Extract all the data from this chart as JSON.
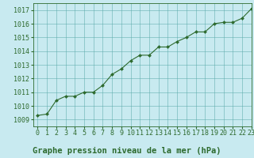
{
  "x": [
    0,
    1,
    2,
    3,
    4,
    5,
    6,
    7,
    8,
    9,
    10,
    11,
    12,
    13,
    14,
    15,
    16,
    17,
    18,
    19,
    20,
    21,
    22,
    23
  ],
  "y": [
    1009.3,
    1009.4,
    1010.4,
    1010.7,
    1010.7,
    1011.0,
    1011.0,
    1011.5,
    1012.3,
    1012.7,
    1013.3,
    1013.7,
    1013.7,
    1014.3,
    1014.3,
    1014.7,
    1015.0,
    1015.4,
    1015.4,
    1016.0,
    1016.1,
    1016.1,
    1016.4,
    1017.1
  ],
  "line_color": "#2d6a2d",
  "marker_color": "#2d6a2d",
  "bg_color": "#c8eaf0",
  "grid_color": "#5aaaaa",
  "title": "Graphe pression niveau de la mer (hPa)",
  "xlim": [
    -0.5,
    23
  ],
  "ylim": [
    1008.5,
    1017.5
  ],
  "yticks": [
    1009,
    1010,
    1011,
    1012,
    1013,
    1014,
    1015,
    1016,
    1017
  ],
  "xticks": [
    0,
    1,
    2,
    3,
    4,
    5,
    6,
    7,
    8,
    9,
    10,
    11,
    12,
    13,
    14,
    15,
    16,
    17,
    18,
    19,
    20,
    21,
    22,
    23
  ],
  "title_fontsize": 7.5,
  "tick_fontsize": 6.0
}
